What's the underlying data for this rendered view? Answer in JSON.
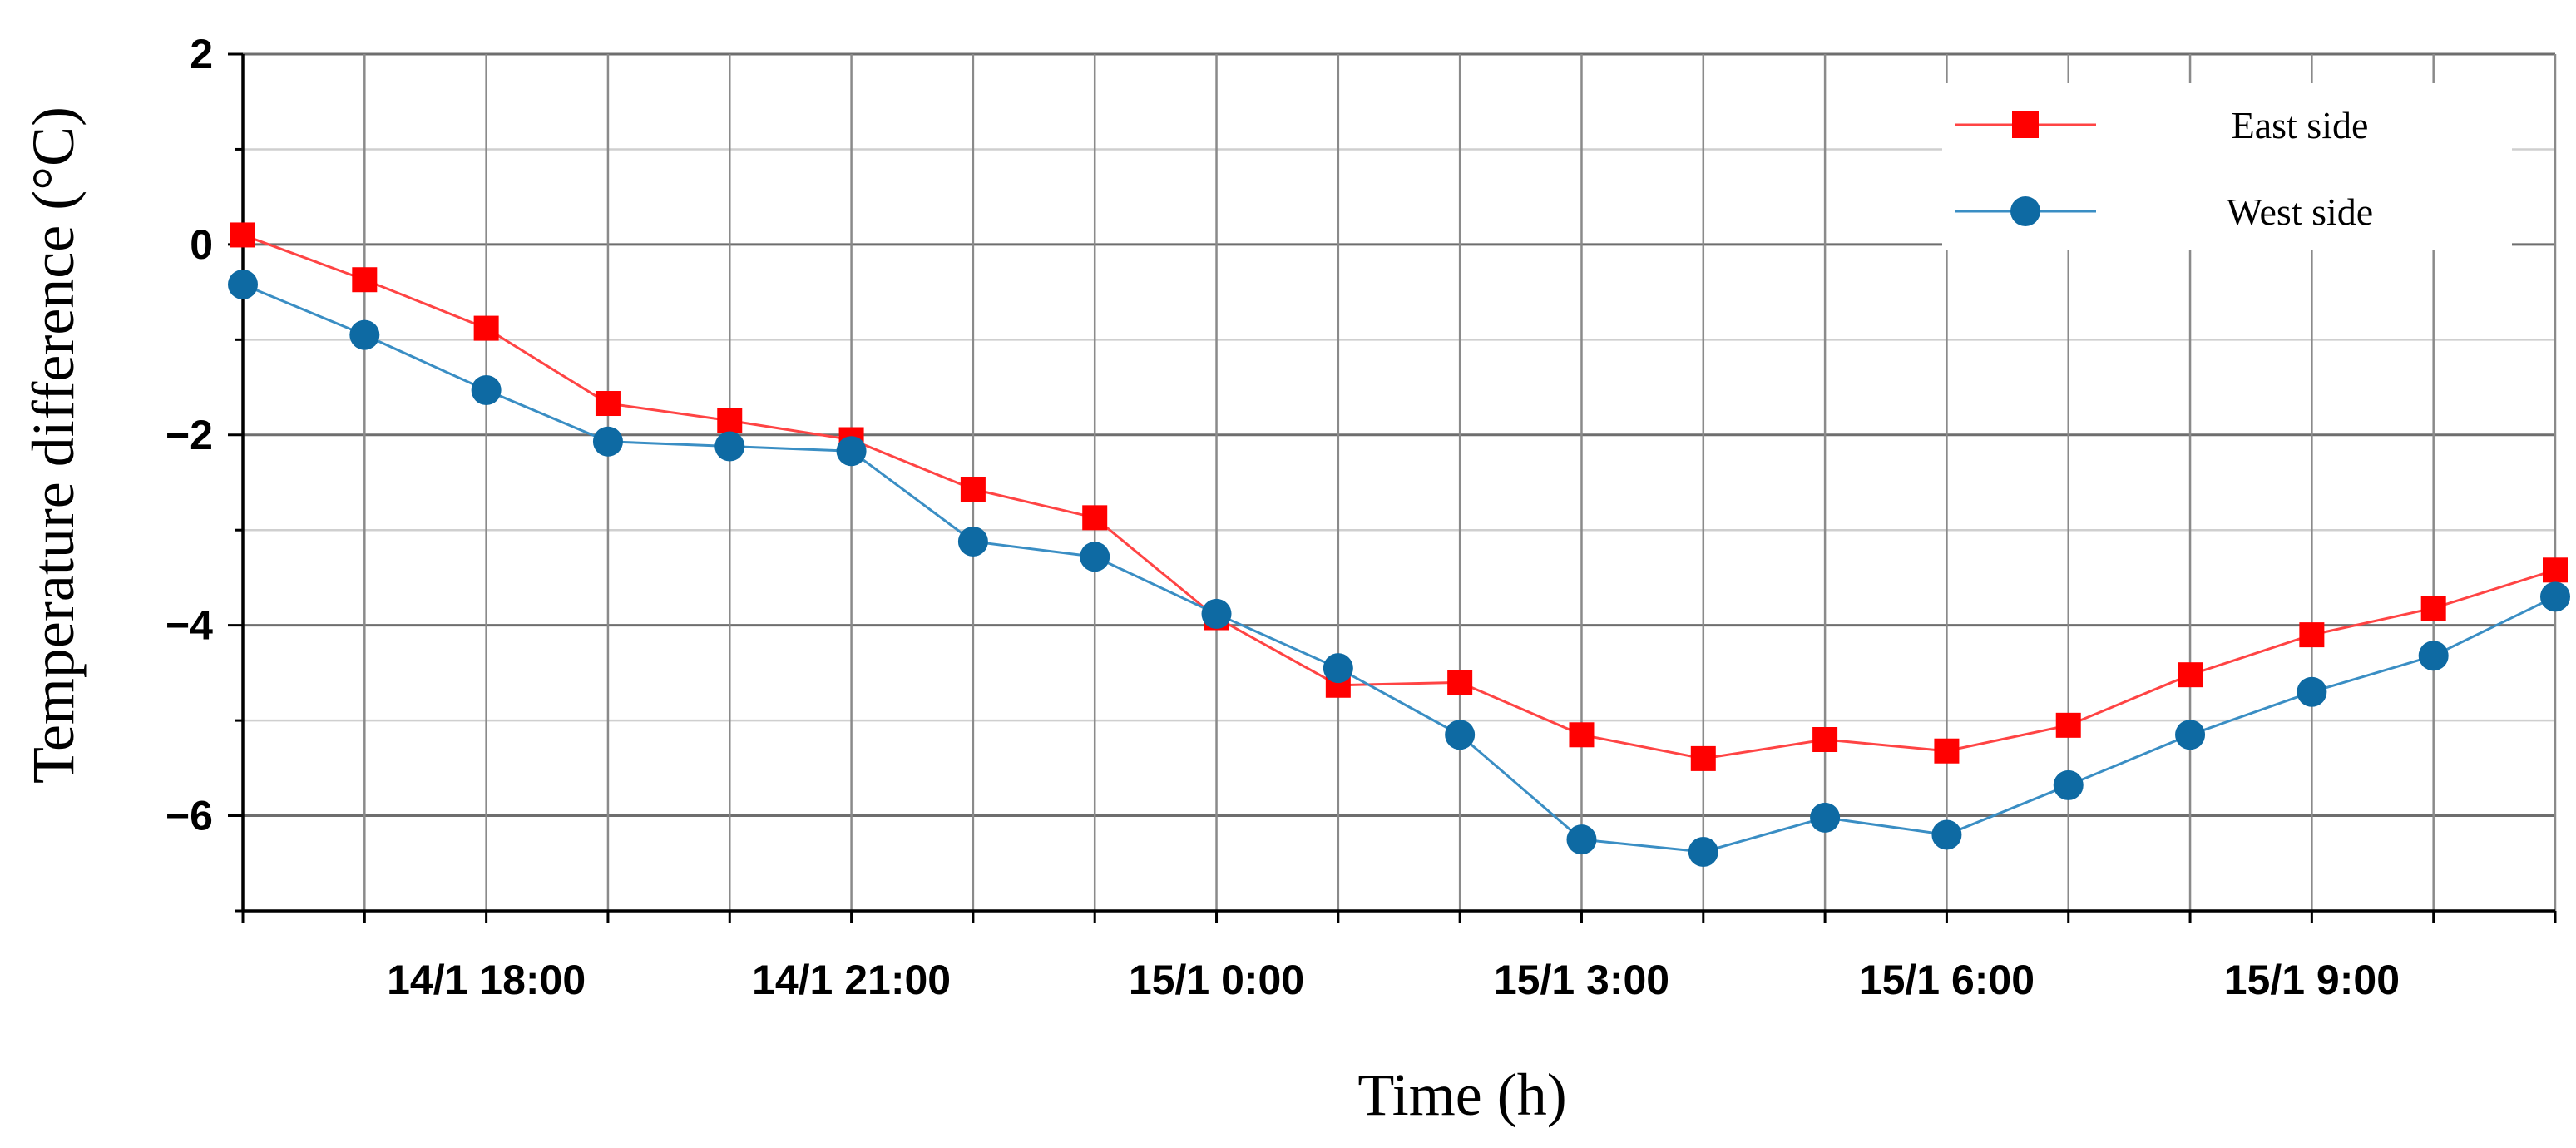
{
  "chart_data": {
    "type": "line",
    "title": "",
    "xlabel": "Time (h)",
    "ylabel": "Temperature difference (°C)",
    "y_ticks": [
      "2",
      "0",
      "−2",
      "−4",
      "−6"
    ],
    "y_tick_values": [
      2,
      0,
      -2,
      -4,
      -6
    ],
    "ylim": [
      -7,
      2
    ],
    "x_tick_labels": [
      "14/1 18:00",
      "14/1 21:00",
      "15/1 0:00",
      "15/1 3:00",
      "15/1 6:00",
      "15/1 9:00"
    ],
    "x_tick_label_indices": [
      2,
      5,
      8,
      11,
      14,
      17
    ],
    "x": [
      "14/1 16:00",
      "14/1 17:00",
      "14/1 18:00",
      "14/1 19:00",
      "14/1 20:00",
      "14/1 21:00",
      "14/1 22:00",
      "14/1 23:00",
      "15/1 0:00",
      "15/1 1:00",
      "15/1 2:00",
      "15/1 3:00",
      "15/1 4:00",
      "15/1 5:00",
      "15/1 6:00",
      "15/1 7:00",
      "15/1 8:00",
      "15/1 9:00",
      "15/1 10:00",
      "15/1 11:00"
    ],
    "grid": true,
    "legend_position": "top-right",
    "series": [
      {
        "name": "East side",
        "marker": "square",
        "color": "#ff0000",
        "line_color": "#ff4444",
        "values": [
          0.1,
          -0.37,
          -0.88,
          -1.67,
          -1.85,
          -2.05,
          -2.57,
          -2.87,
          -3.92,
          -4.63,
          -4.6,
          -5.15,
          -5.4,
          -5.2,
          -5.32,
          -5.05,
          -4.52,
          -4.1,
          -3.82,
          -3.42
        ]
      },
      {
        "name": "West side",
        "marker": "circle",
        "color": "#0e6aa3",
        "line_color": "#3a8ec4",
        "values": [
          -0.42,
          -0.95,
          -1.53,
          -2.07,
          -2.12,
          -2.17,
          -3.12,
          -3.28,
          -3.88,
          -4.45,
          -5.15,
          -6.25,
          -6.38,
          -6.02,
          -6.2,
          -5.68,
          -5.15,
          -4.7,
          -4.32,
          -3.7
        ]
      }
    ]
  }
}
